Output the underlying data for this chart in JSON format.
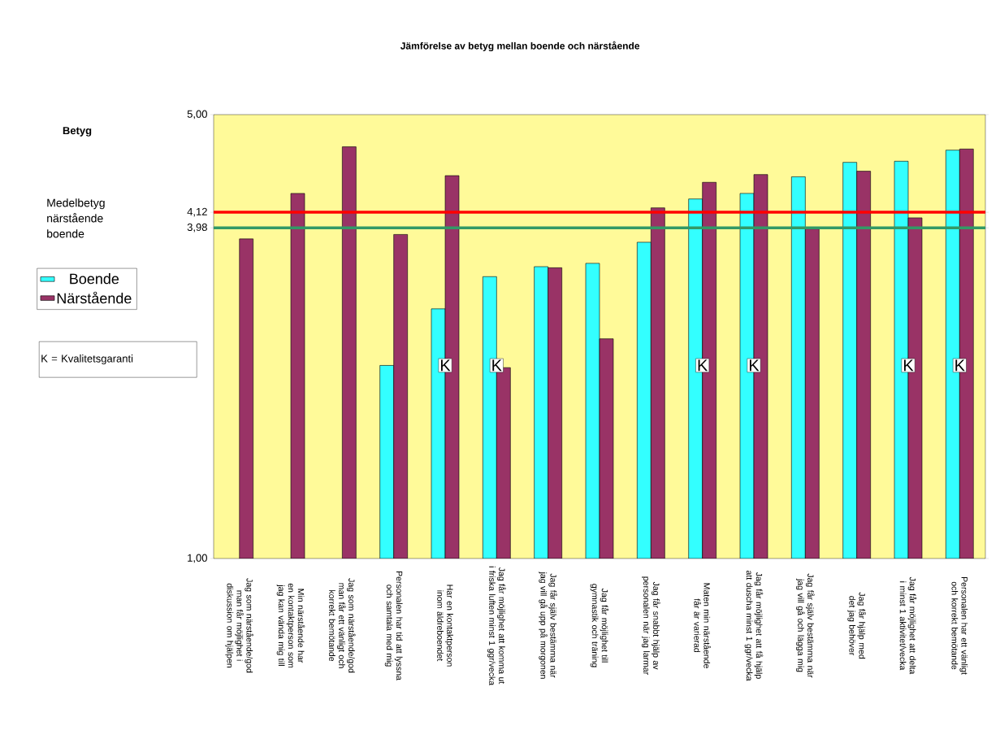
{
  "chart_data": {
    "type": "bar",
    "title": "Jämförelse av betyg mellan boende och närstående",
    "categories": [
      "Jag som närstående/god man får möjlighet i diskussion om hjälpen",
      "Min närstående har en kontaktperson som jag kan vända mig till",
      "Jag som närstående/god man får ett vänligt och korrekt bemötande",
      "Personalen har tid att lyssna och samtala med mig",
      "Har en kontaktperson inom äldreboendet",
      "Jag får möjlighet att komma ut i friska luften minst 1 ggr/vecka",
      "Jag får själv bestämma när jag vill gå upp på morgonen",
      "Jag får möjlighet till gymnastik och träning",
      "Jag får snabbt hjälp av personalen när jag larmar",
      "Maten min närstående får är varierad",
      "Jag får möjlighet att få hjälp att duscha minst 1 ggr/vecka",
      "Jag får själv bestämma när jag vill gå och lägga mig",
      "Jag får hjälp med det jag behöver",
      "Jag får möjlighet att delta i minst 1 aktivitet/vecka",
      "Personalen har ett vänligt och korrekt bemötande"
    ],
    "series": [
      {
        "name": "Boende",
        "color": "#33ffff",
        "values": [
          null,
          null,
          null,
          2.74,
          3.25,
          3.54,
          3.63,
          3.66,
          3.85,
          4.24,
          4.29,
          4.44,
          4.57,
          4.58,
          4.68
        ]
      },
      {
        "name": "Närstående",
        "color": "#993366",
        "values": [
          3.88,
          4.29,
          4.71,
          3.92,
          4.45,
          2.72,
          3.62,
          2.98,
          4.16,
          4.39,
          4.46,
          3.97,
          4.49,
          4.07,
          4.69
        ]
      }
    ],
    "ylim": [
      1,
      5
    ],
    "yticks": [
      {
        "value": 1,
        "label": "1,00"
      },
      {
        "value": 3.98,
        "label": "3,98"
      },
      {
        "value": 4.12,
        "label": "4,12"
      },
      {
        "value": 5,
        "label": "5,00"
      }
    ],
    "ref_lines": [
      {
        "axis": "y",
        "value": 4.12,
        "color": "#ff0000"
      },
      {
        "axis": "y",
        "value": 3.98,
        "color": "#339966"
      }
    ],
    "legend": "left",
    "annotations": [
      "Betyg",
      "Medelbetyg närstående boende",
      "K = Kvalitetsgaranti",
      {
        "text": "K",
        "x": "Har en kontaktperson inom äldreboendet",
        "y": 2.74
      },
      {
        "text": "K",
        "x": "Jag får möjlighet att komma ut i friska luften minst 1 ggr/vecka",
        "y": 2.74
      },
      {
        "text": "K",
        "x": "Maten min närstående får är varierad",
        "y": 2.74
      },
      {
        "text": "K",
        "x": "Jag får möjlighet att få hjälp att duscha minst 1 ggr/vecka",
        "y": 2.74
      },
      {
        "text": "K",
        "x": "Jag får möjlighet att delta i minst 1 aktivitet/vecka",
        "y": 2.74
      },
      {
        "text": "K",
        "x": "Personalen har ett vänligt och korrekt bemötande",
        "y": 2.74
      }
    ]
  }
}
